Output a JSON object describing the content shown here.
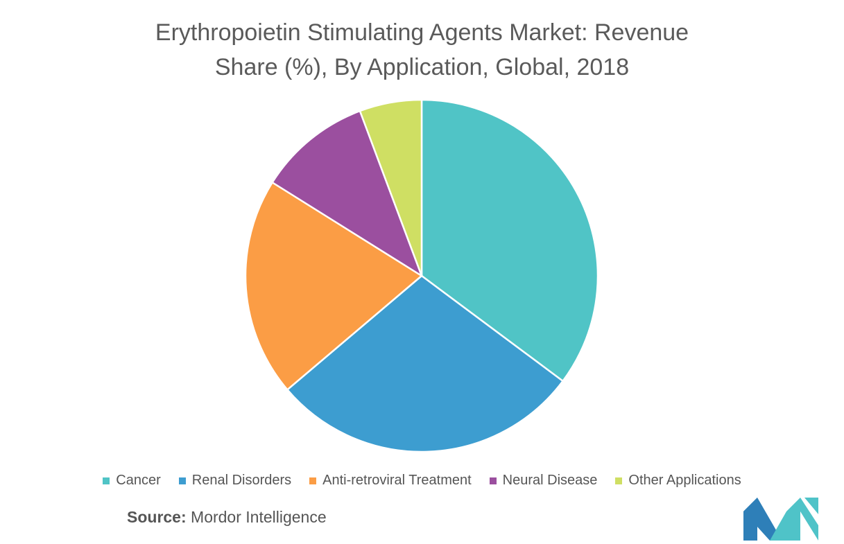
{
  "chart_data": {
    "type": "pie",
    "title_line1": "Erythropoietin Stimulating Agents Market: Revenue",
    "title_line2": "Share (%), By Application, Global, 2018",
    "slices": [
      {
        "label": "Cancer",
        "value": 35.2,
        "color": "#50C4C6"
      },
      {
        "label": "Renal Disorders",
        "value": 28.6,
        "color": "#3D9DD0"
      },
      {
        "label": "Anti-retroviral Treatment",
        "value": 20.1,
        "color": "#FB9D45"
      },
      {
        "label": "Neural Disease",
        "value": 10.4,
        "color": "#9B4F9F"
      },
      {
        "label": "Other Applications",
        "value": 5.7,
        "color": "#CFDF63"
      }
    ],
    "legend_position": "bottom"
  },
  "source": {
    "label": "Source:",
    "text": "Mordor Intelligence"
  },
  "logo": {
    "icon": "mordor-intelligence-logo",
    "colors": [
      "#2E7FB8",
      "#4FC3C8"
    ]
  }
}
